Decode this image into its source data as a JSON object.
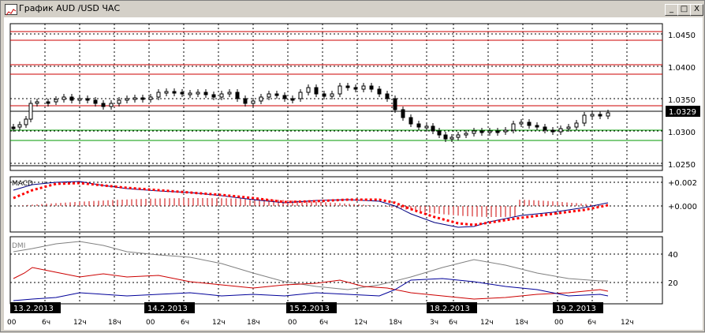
{
  "window": {
    "title": "График AUD /USD ЧАС",
    "minimize_label": "_",
    "maximize_label": "□",
    "close_label": "X"
  },
  "main_chart": {
    "price_labels": [
      "1.0450",
      "1.0400",
      "1.0350",
      "1.0300",
      "1.0250"
    ],
    "current_price": "1.0329"
  },
  "macd": {
    "label": "MACD",
    "axis_labels": [
      "+0.002",
      "+0.000"
    ]
  },
  "dmi": {
    "label": "DMI",
    "axis_labels": [
      "40",
      "20"
    ]
  },
  "time_axis": {
    "date_labels": [
      "13.2.2013",
      "14.2.2013",
      "15.2.2013",
      "18.2.2013",
      "19.2.2013"
    ],
    "hour_labels": [
      "00",
      "6ч",
      "12ч",
      "18ч",
      "00",
      "6ч",
      "12ч",
      "18ч",
      "00",
      "6ч",
      "12ч",
      "18ч",
      "3ч",
      "6ч",
      "12ч",
      "18ч",
      "00",
      "6ч",
      "12ч"
    ]
  },
  "colors": {
    "red_line": "#cc0000",
    "green_line": "#009900",
    "macd_signal": "#ff0000",
    "macd_line": "#000080",
    "dmi_adx": "#808080",
    "dmi_minus": "#cc0000",
    "dmi_plus": "#000099"
  }
}
